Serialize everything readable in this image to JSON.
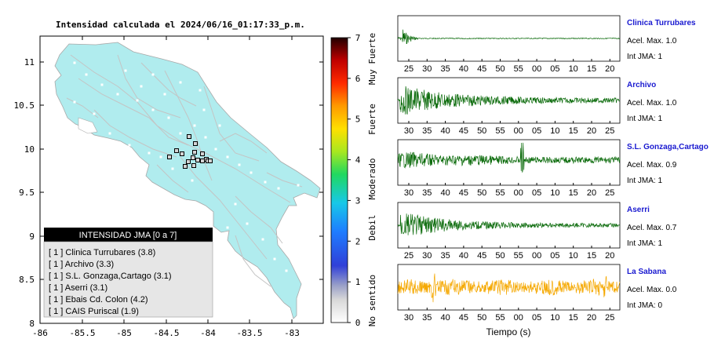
{
  "map": {
    "title": "Intensidad calculada el 2024/06/16_01:17:33_p.m.",
    "x_ticks": [
      "-86",
      "-85.5",
      "-85",
      "-84.5",
      "-84",
      "-83.5",
      "-83"
    ],
    "y_ticks": [
      "11",
      "10.5",
      "10",
      "9.5",
      "9",
      "8.5",
      "8"
    ],
    "land_color": "#b0ecee",
    "legend": {
      "title": "INTENSIDAD JMA [0 a 7]",
      "items": [
        "[ 1 ]  Clinica Turrubares (3.8)",
        "[ 1 ]  Archivo (3.3)",
        "[ 1 ]  S.L. Gonzaga,Cartago (3.1)",
        "[ 1 ]  Aserri (3.1)",
        "[ 1 ]  Ebais Cd. Colon (4.2)",
        "[ 1 ]  CAIS Puriscal (1.9)"
      ]
    }
  },
  "colorbar": {
    "ticks": [
      "0",
      "1",
      "2",
      "3",
      "4",
      "5",
      "6",
      "7"
    ],
    "labels": [
      "No sentido",
      "Debil",
      "Moderado",
      "Fuerte",
      "Muy Fuerte"
    ]
  },
  "waveforms": {
    "xlabel": "Tiempo (s)",
    "panels": [
      {
        "station": "Clinica Turrubares",
        "acel": "Acel. Max. 1.0",
        "jma": "Int JMA: 1",
        "color": "#0b6b0b",
        "ticks": [
          "25",
          "30",
          "35",
          "40",
          "45",
          "50",
          "55",
          "00",
          "05",
          "10",
          "15",
          "20"
        ]
      },
      {
        "station": "Archivo",
        "acel": "Acel. Max. 1.0",
        "jma": "Int JMA: 1",
        "color": "#0b6b0b",
        "ticks": [
          "30",
          "35",
          "40",
          "45",
          "50",
          "55",
          "00",
          "05",
          "10",
          "15",
          "20",
          "25"
        ]
      },
      {
        "station": "S.L. Gonzaga,Cartago",
        "acel": "Acel. Max. 0.9",
        "jma": "Int JMA: 1",
        "color": "#0b6b0b",
        "ticks": [
          "30",
          "35",
          "40",
          "45",
          "50",
          "55",
          "00",
          "05",
          "10",
          "15",
          "20",
          "25"
        ]
      },
      {
        "station": "Aserri",
        "acel": "Acel. Max. 0.7",
        "jma": "Int JMA: 1",
        "color": "#0b6b0b",
        "ticks": [
          "25",
          "30",
          "35",
          "40",
          "45",
          "50",
          "55",
          "00",
          "05",
          "10",
          "15",
          "20"
        ]
      },
      {
        "station": "La Sabana",
        "acel": "Acel. Max. 0.0",
        "jma": "Int JMA: 0",
        "color": "#f5a800",
        "ticks": [
          "30",
          "35",
          "40",
          "45",
          "50",
          "55",
          "00",
          "05",
          "10",
          "15",
          "20",
          "25"
        ]
      }
    ]
  }
}
